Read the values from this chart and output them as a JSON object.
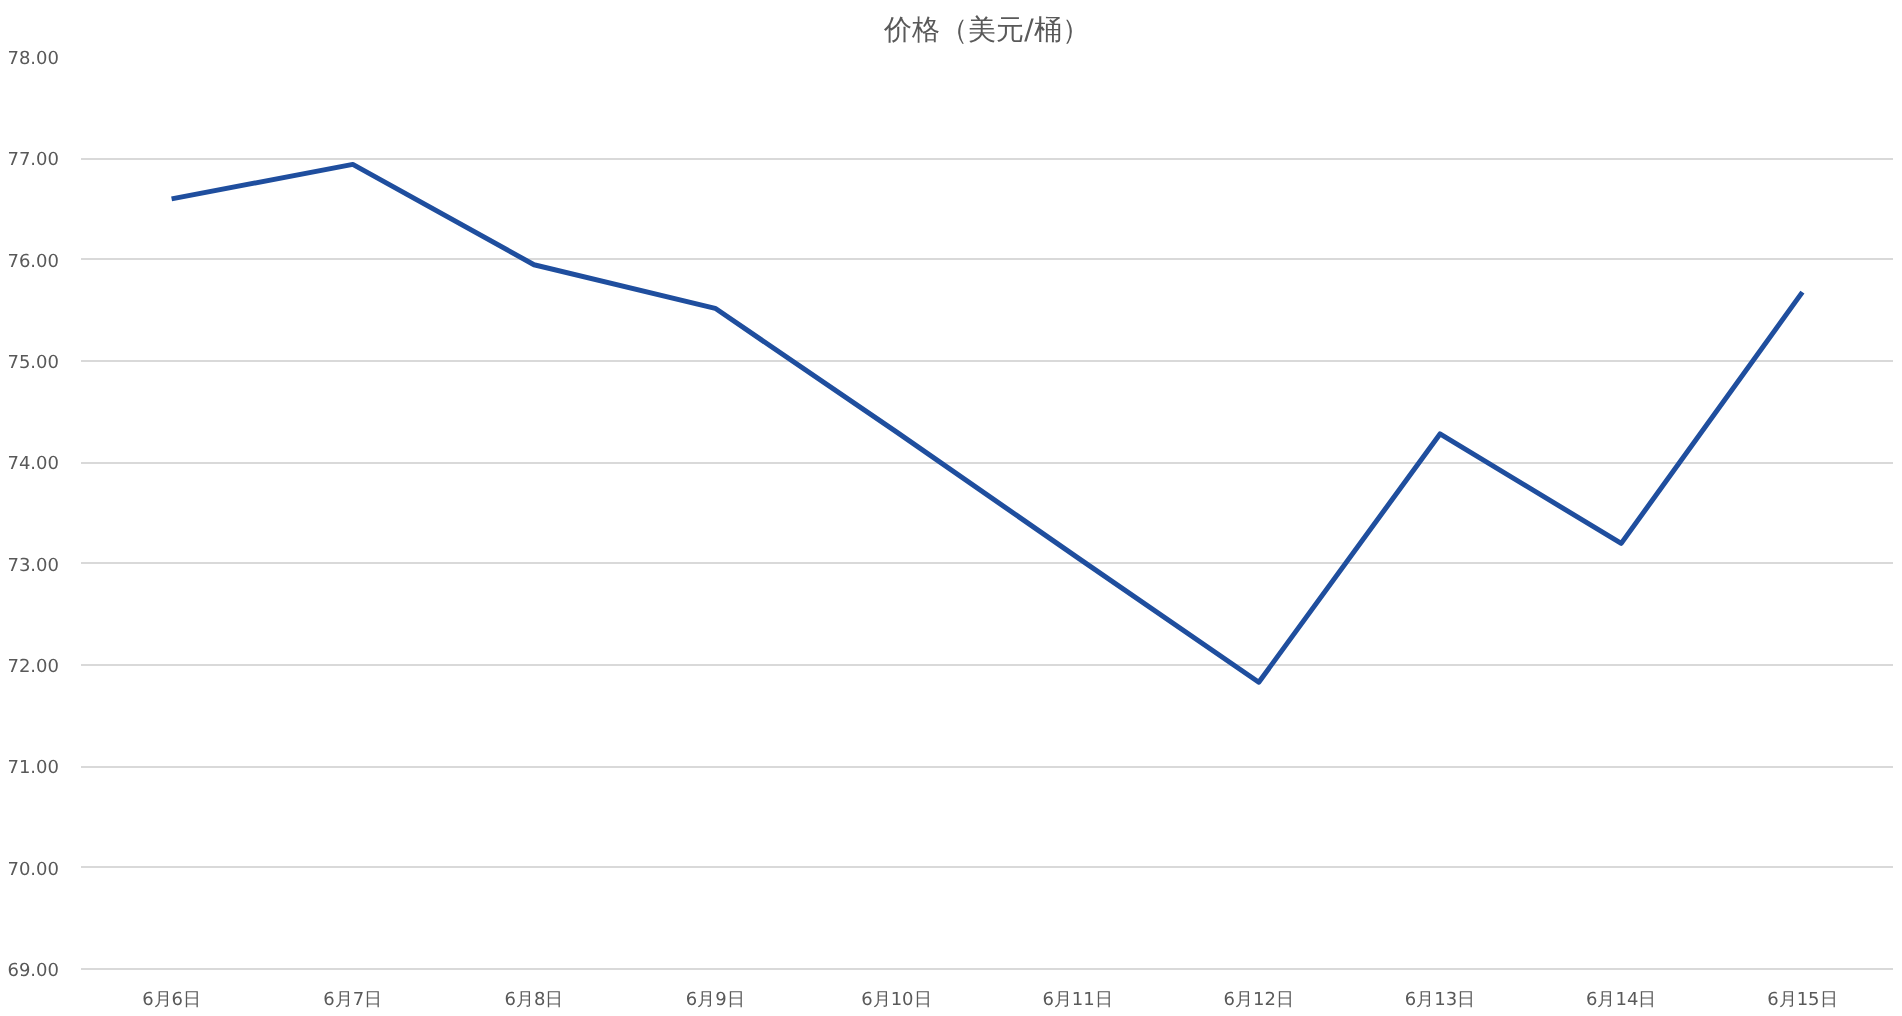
{
  "chart_data": {
    "type": "line",
    "title": "价格（美元/桶）",
    "categories": [
      "6月6日",
      "6月7日",
      "6月8日",
      "6月9日",
      "6月10日",
      "6月11日",
      "6月12日",
      "6月13日",
      "6月14日",
      "6月15日"
    ],
    "series": [
      {
        "color": "#1f4e9e",
        "values": [
          76.6,
          76.94,
          75.95,
          75.52,
          74.3,
          73.06,
          71.83,
          74.28,
          73.2,
          75.68
        ]
      }
    ],
    "ylim": [
      69,
      78
    ],
    "yticks": [
      {
        "value": 69,
        "label": "69.00"
      },
      {
        "value": 70,
        "label": "70.00"
      },
      {
        "value": 71,
        "label": "71.00"
      },
      {
        "value": 72,
        "label": "72.00"
      },
      {
        "value": 73,
        "label": "73.00"
      },
      {
        "value": 74,
        "label": "74.00"
      },
      {
        "value": 75,
        "label": "75.00"
      },
      {
        "value": 76,
        "label": "76.00"
      },
      {
        "value": 77,
        "label": "77.00"
      },
      {
        "value": 78,
        "label": "78.00"
      }
    ],
    "grid": "y",
    "marker": "none",
    "line_style": "solid"
  }
}
